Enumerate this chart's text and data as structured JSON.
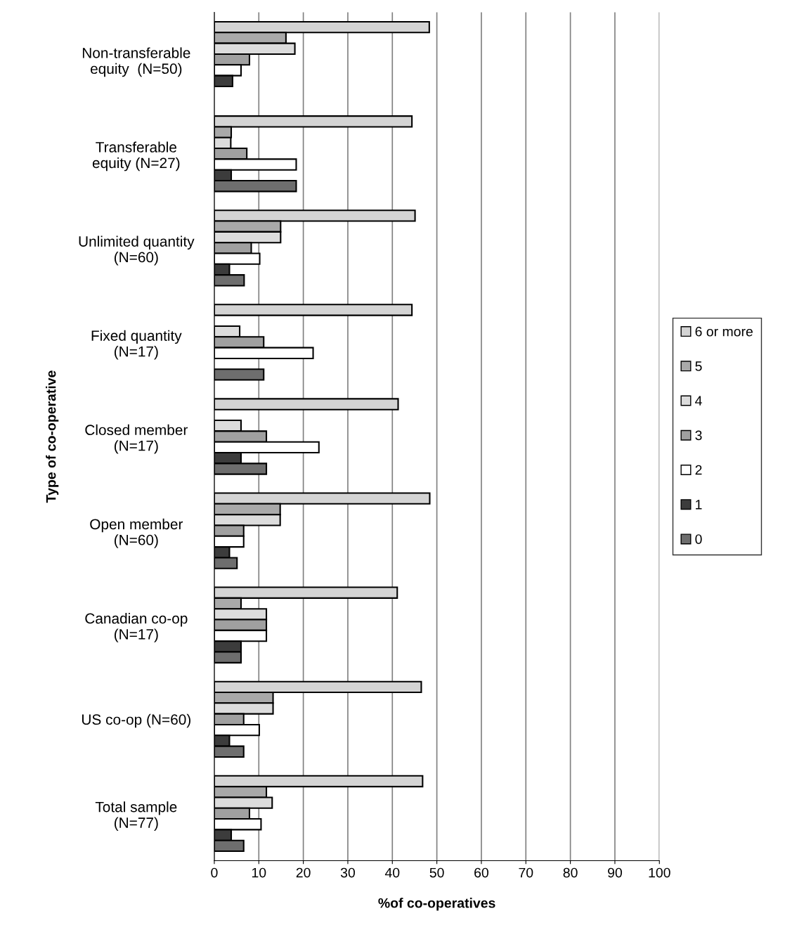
{
  "chart_data": {
    "type": "bar",
    "orientation": "horizontal",
    "xlabel": "%of co-operatives",
    "ylabel": "Type of co-operative",
    "categories": [
      "Non-transferable\nequity  (N=50)",
      "Transferable\nequity (N=27)",
      "Unlimited quantity\n(N=60)",
      "Fixed quantity\n(N=17)",
      "Closed member\n(N=17)",
      "Open member\n(N=60)",
      "Canadian co-op\n(N=17)",
      "US co-op (N=60)",
      "Total sample\n(N=77)"
    ],
    "series": [
      {
        "name": "6 or more",
        "color": "#d4d4d4",
        "values": [
          48.3,
          44.4,
          45.1,
          44.4,
          41.3,
          48.4,
          41.1,
          46.5,
          46.8
        ]
      },
      {
        "name": "5",
        "color": "#a9a9a9",
        "values": [
          16.1,
          3.8,
          14.9,
          0,
          0,
          14.8,
          6.0,
          13.2,
          11.7
        ]
      },
      {
        "name": "4",
        "color": "#dcdcdc",
        "values": [
          18.1,
          3.7,
          14.9,
          5.7,
          6.0,
          14.8,
          11.7,
          13.2,
          13.0
        ]
      },
      {
        "name": "3",
        "color": "#a0a0a0",
        "values": [
          7.9,
          7.3,
          8.3,
          11.1,
          11.7,
          6.6,
          11.7,
          6.6,
          7.9
        ]
      },
      {
        "name": "2",
        "color": "#ffffff",
        "values": [
          6.0,
          18.4,
          10.2,
          22.2,
          23.5,
          6.6,
          11.7,
          10.1,
          10.5
        ]
      },
      {
        "name": "1",
        "color": "#3c3c3c",
        "values": [
          4.1,
          3.8,
          3.4,
          0,
          6.0,
          3.4,
          6.0,
          3.4,
          3.8
        ]
      },
      {
        "name": "0",
        "color": "#6e6e6e",
        "values": [
          0,
          18.4,
          6.7,
          11.1,
          11.7,
          5.1,
          6.0,
          6.6,
          6.6
        ]
      }
    ],
    "xlim": [
      0,
      100
    ],
    "xticks": [
      0,
      10,
      20,
      30,
      40,
      50,
      60,
      70,
      80,
      90,
      100
    ],
    "grid": "x",
    "legend": "right"
  }
}
